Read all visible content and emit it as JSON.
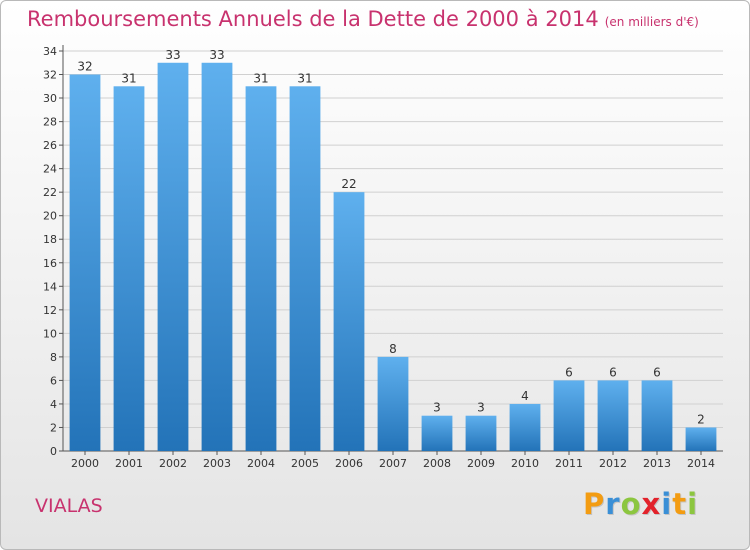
{
  "header": {
    "title": "Remboursements Annuels de la Dette de 2000 à 2014",
    "subtitle": "(en milliers d'€)"
  },
  "footer": {
    "commune": "VIALAS",
    "logo_letters": [
      "P",
      "r",
      "o",
      "x",
      "i",
      "t",
      "i"
    ],
    "logo_colors": [
      "#f39c12",
      "#3a8fd6",
      "#8cc63f",
      "#e2222b",
      "#3a8fd6",
      "#f39c12",
      "#8cc63f"
    ]
  },
  "colors": {
    "title": "#c8326e",
    "bar_top": "#5fb0ee",
    "bar_bottom": "#2373b8"
  },
  "chart_data": {
    "type": "bar",
    "title": "Remboursements Annuels de la Dette de 2000 à 2014",
    "subtitle": "(en milliers d'€)",
    "categories": [
      "2000",
      "2001",
      "2002",
      "2003",
      "2004",
      "2005",
      "2006",
      "2007",
      "2008",
      "2009",
      "2010",
      "2011",
      "2012",
      "2013",
      "2014"
    ],
    "values": [
      32,
      31,
      33,
      33,
      31,
      31,
      22,
      8,
      3,
      3,
      4,
      6,
      6,
      6,
      2
    ],
    "ylim": [
      0,
      34
    ],
    "yticks": [
      0,
      2,
      4,
      6,
      8,
      10,
      12,
      14,
      16,
      18,
      20,
      22,
      24,
      26,
      28,
      30,
      32,
      34
    ],
    "grid": true,
    "xlabel": "",
    "ylabel": ""
  }
}
